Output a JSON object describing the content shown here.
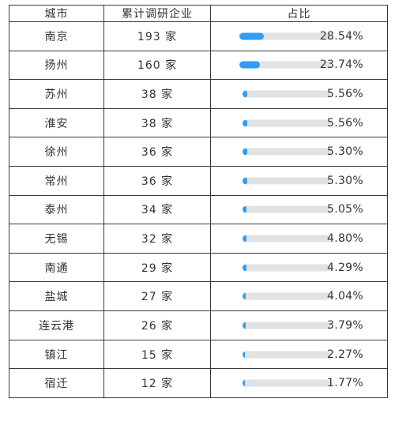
{
  "table": {
    "headers": [
      "城市",
      "累计调研企业",
      "占比"
    ],
    "accent_color": "#2f9df4",
    "track_color": "#e2e2e2",
    "rows": [
      {
        "city": "南京",
        "count": "193 家",
        "pct_label": "28.54%",
        "pct": 28.54
      },
      {
        "city": "扬州",
        "count": "160 家",
        "pct_label": "23.74%",
        "pct": 23.74
      },
      {
        "city": "苏州",
        "count": "38 家",
        "pct_label": "5.56%",
        "pct": 5.56
      },
      {
        "city": "淮安",
        "count": "38 家",
        "pct_label": "5.56%",
        "pct": 5.56
      },
      {
        "city": "徐州",
        "count": "36 家",
        "pct_label": "5.30%",
        "pct": 5.3
      },
      {
        "city": "常州",
        "count": "36 家",
        "pct_label": "5.30%",
        "pct": 5.3
      },
      {
        "city": "泰州",
        "count": "34 家",
        "pct_label": "5.05%",
        "pct": 5.05
      },
      {
        "city": "无锡",
        "count": "32 家",
        "pct_label": "4.80%",
        "pct": 4.8
      },
      {
        "city": "南通",
        "count": "29 家",
        "pct_label": "4.29%",
        "pct": 4.29
      },
      {
        "city": "盐城",
        "count": "27 家",
        "pct_label": "4.04%",
        "pct": 4.04
      },
      {
        "city": "连云港",
        "count": "26 家",
        "pct_label": "3.79%",
        "pct": 3.79
      },
      {
        "city": "镇江",
        "count": "15 家",
        "pct_label": "2.27%",
        "pct": 2.27
      },
      {
        "city": "宿迁",
        "count": "12 家",
        "pct_label": "1.77%",
        "pct": 1.77
      }
    ]
  }
}
